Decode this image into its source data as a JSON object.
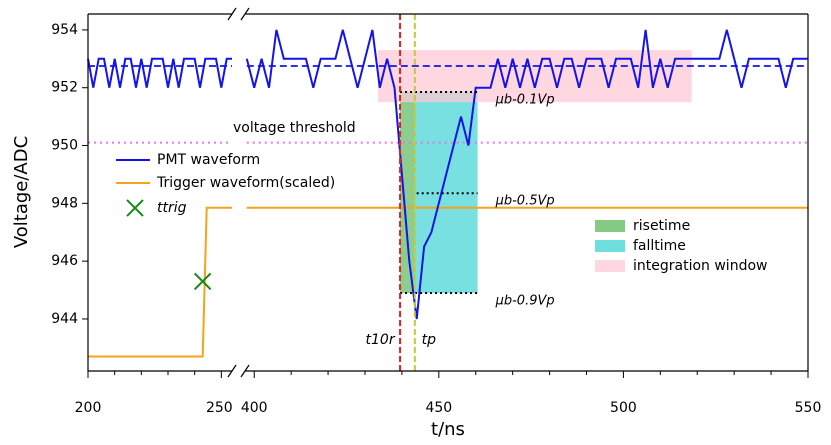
{
  "chart_data": {
    "type": "line",
    "xlabel": "t/ns",
    "ylabel": "Voltage/ADC",
    "ylim": [
      942.2,
      954.55
    ],
    "yticks": [
      944,
      946,
      948,
      950,
      952,
      954
    ],
    "x_panels": [
      {
        "xlim": [
          200,
          254
        ],
        "xticks": [
          200,
          250
        ],
        "xminor": [
          210,
          220,
          230,
          240
        ]
      },
      {
        "xlim": [
          397.5,
          550
        ],
        "xticks": [
          400,
          450,
          500,
          550
        ],
        "xminor": [
          410,
          420,
          430,
          440,
          460,
          470,
          480,
          490,
          510,
          520,
          530,
          540
        ]
      }
    ],
    "series": [
      {
        "name": "PMT waveform",
        "color": "#1414e6",
        "x": [
          200,
          202,
          204,
          206,
          208,
          210,
          212,
          214,
          216,
          218,
          220,
          222,
          224,
          226,
          228,
          230,
          232,
          234,
          236,
          238,
          240,
          242,
          244,
          246,
          248,
          250,
          252,
          254,
          398,
          400,
          402,
          404,
          406,
          408,
          410,
          412,
          414,
          416,
          418,
          420,
          422,
          424,
          426,
          428,
          430,
          432,
          434,
          436,
          438,
          440,
          442,
          444,
          446,
          448,
          450,
          452,
          454,
          456,
          458,
          460,
          462,
          464,
          466,
          468,
          470,
          472,
          474,
          476,
          478,
          480,
          482,
          484,
          486,
          488,
          490,
          492,
          494,
          496,
          498,
          500,
          502,
          504,
          506,
          508,
          510,
          512,
          514,
          516,
          518,
          520,
          522,
          524,
          526,
          528,
          530,
          532,
          534,
          536,
          538,
          540,
          542,
          544,
          546,
          548,
          550
        ],
        "values": [
          953,
          952,
          953,
          953,
          952,
          953,
          952,
          953,
          953,
          952,
          953,
          952,
          953,
          953,
          953,
          952,
          953,
          952,
          953,
          953,
          953,
          952,
          953,
          953,
          953,
          952,
          953,
          953,
          953,
          952,
          953,
          952,
          954,
          953,
          953,
          953,
          953,
          952,
          953,
          953,
          953,
          954,
          953,
          952,
          953,
          954,
          952,
          953,
          952,
          949,
          946,
          944,
          946.5,
          947,
          948,
          949,
          950,
          951,
          950,
          952,
          952,
          952,
          953,
          952,
          953,
          952,
          953,
          952,
          953,
          953,
          952,
          953,
          953,
          952,
          953,
          953,
          953,
          952,
          953,
          953,
          953,
          952,
          954,
          952,
          953,
          952,
          953,
          953,
          953,
          953,
          953,
          953,
          953,
          954,
          953,
          952,
          953,
          953,
          953,
          953,
          953,
          952,
          953,
          953,
          953
        ]
      },
      {
        "name": "Trigger waveform(scaled)",
        "color": "#f5a31a",
        "x": [
          200,
          243,
          244.5,
          254,
          398,
          550
        ],
        "values": [
          942.7,
          942.7,
          947.85,
          947.85,
          947.85,
          947.85
        ]
      }
    ],
    "baseline": {
      "color": "#1414e6",
      "x": [
        200,
        254,
        398,
        550
      ],
      "values": [
        952.75,
        952.75,
        952.75,
        952.75
      ]
    },
    "threshold": {
      "label": "voltage threshold",
      "color": "#e07be0",
      "x": [
        200,
        254,
        398,
        550
      ],
      "values": [
        950.1,
        950.1,
        950.1,
        950.1
      ]
    },
    "trigger_marker": {
      "name": "ttrig",
      "color": "#1a8a1a",
      "x": 243,
      "y": 945.3
    },
    "regions": [
      {
        "name": "risetime",
        "color": "#5cb85c",
        "x": [
          439.5,
          443.5
        ],
        "y": [
          944.9,
          951.85
        ]
      },
      {
        "name": "falltime",
        "color": "#3fd3d3",
        "x": [
          443.5,
          460.5
        ],
        "y": [
          944.9,
          951.85
        ]
      },
      {
        "name": "integration window",
        "color": "#ffc9d6",
        "x": [
          433.5,
          518.5
        ],
        "y": [
          951.5,
          953.3
        ]
      }
    ],
    "levels": [
      {
        "label": "μb-0.1Vp",
        "x": [
          439.5,
          460.5
        ],
        "y": 951.85
      },
      {
        "label": "μb-0.5Vp",
        "x": [
          444,
          460.5
        ],
        "y": 948.35
      },
      {
        "label": "μb-0.9Vp",
        "x": [
          439.5,
          460.5
        ],
        "y": 944.9
      }
    ],
    "vlines": [
      {
        "label": "t10r",
        "color": "#e62020",
        "x": 439.5
      },
      {
        "label": "tp",
        "color": "#c8c832",
        "x": 443.5
      }
    ]
  }
}
